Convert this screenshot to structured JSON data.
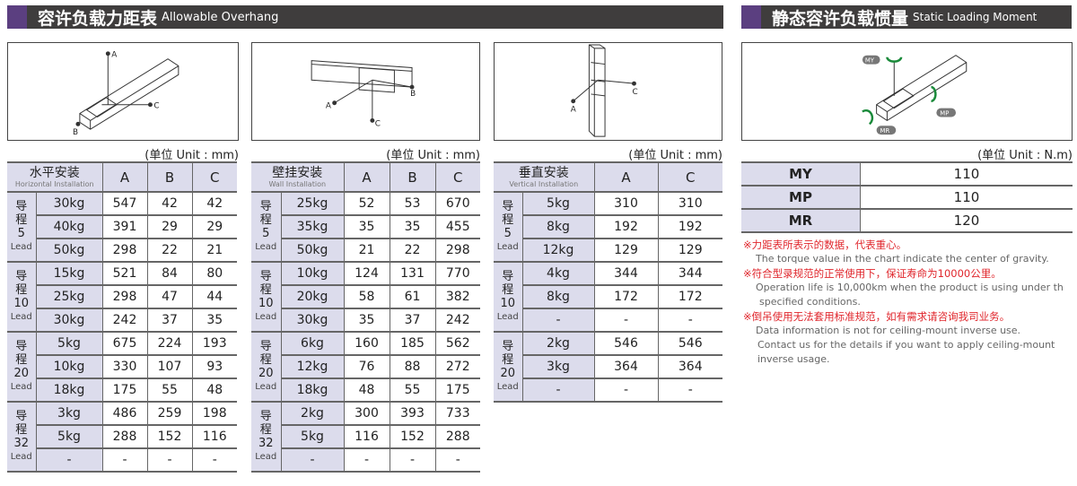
{
  "header_left": {
    "zh": "容许负载力距表",
    "en": "Allowable Overhang"
  },
  "header_right": {
    "zh": "静态容许负载惯量",
    "en": "Static Loading Moment"
  },
  "unit_mm": "(单位 Unit : mm)",
  "unit_nm": "(单位 Unit : N.m)",
  "diagram_labels": {
    "a": "A",
    "b": "B",
    "c": "C",
    "my": "MY",
    "mp": "MP",
    "mr": "MR"
  },
  "lead_word": "Lead",
  "lead_zh": "导程",
  "colors": {
    "header_bg": "#3f3d3d",
    "accent": "#5b3f80",
    "cell_bg": "#dcdcec",
    "note_red": "#e0262c",
    "arrow_green": "#1a8a3a"
  },
  "horizontal": {
    "title_zh": "水平安装",
    "title_en": "Horizontal Installation",
    "cols": [
      "A",
      "B",
      "C"
    ],
    "groups": [
      {
        "lead": "5",
        "rows": [
          [
            "30kg",
            "547",
            "42",
            "42"
          ],
          [
            "40kg",
            "391",
            "29",
            "29"
          ],
          [
            "50kg",
            "298",
            "22",
            "21"
          ]
        ]
      },
      {
        "lead": "10",
        "rows": [
          [
            "15kg",
            "521",
            "84",
            "80"
          ],
          [
            "25kg",
            "298",
            "47",
            "44"
          ],
          [
            "30kg",
            "242",
            "37",
            "35"
          ]
        ]
      },
      {
        "lead": "20",
        "rows": [
          [
            "5kg",
            "675",
            "224",
            "193"
          ],
          [
            "10kg",
            "330",
            "107",
            "93"
          ],
          [
            "18kg",
            "175",
            "55",
            "48"
          ]
        ]
      },
      {
        "lead": "32",
        "rows": [
          [
            "3kg",
            "486",
            "259",
            "198"
          ],
          [
            "5kg",
            "288",
            "152",
            "116"
          ],
          [
            "-",
            "-",
            "-",
            "-"
          ]
        ]
      }
    ]
  },
  "wall": {
    "title_zh": "壁挂安装",
    "title_en": "Wall Installation",
    "cols": [
      "A",
      "B",
      "C"
    ],
    "groups": [
      {
        "lead": "5",
        "rows": [
          [
            "25kg",
            "52",
            "53",
            "670"
          ],
          [
            "35kg",
            "35",
            "35",
            "455"
          ],
          [
            "50kg",
            "21",
            "22",
            "298"
          ]
        ]
      },
      {
        "lead": "10",
        "rows": [
          [
            "10kg",
            "124",
            "131",
            "770"
          ],
          [
            "20kg",
            "58",
            "61",
            "382"
          ],
          [
            "30kg",
            "35",
            "37",
            "242"
          ]
        ]
      },
      {
        "lead": "20",
        "rows": [
          [
            "6kg",
            "160",
            "185",
            "562"
          ],
          [
            "12kg",
            "76",
            "88",
            "272"
          ],
          [
            "18kg",
            "48",
            "55",
            "175"
          ]
        ]
      },
      {
        "lead": "32",
        "rows": [
          [
            "2kg",
            "300",
            "393",
            "733"
          ],
          [
            "5kg",
            "116",
            "152",
            "288"
          ],
          [
            "-",
            "-",
            "-",
            "-"
          ]
        ]
      }
    ]
  },
  "vertical": {
    "title_zh": "垂直安装",
    "title_en": "Vertical Installation",
    "cols": [
      "A",
      "C"
    ],
    "groups": [
      {
        "lead": "5",
        "rows": [
          [
            "5kg",
            "310",
            "310"
          ],
          [
            "8kg",
            "192",
            "192"
          ],
          [
            "12kg",
            "129",
            "129"
          ]
        ]
      },
      {
        "lead": "10",
        "rows": [
          [
            "4kg",
            "344",
            "344"
          ],
          [
            "8kg",
            "172",
            "172"
          ],
          [
            "-",
            "-",
            "-"
          ]
        ]
      },
      {
        "lead": "20",
        "rows": [
          [
            "2kg",
            "546",
            "546"
          ],
          [
            "3kg",
            "364",
            "364"
          ],
          [
            "-",
            "-",
            "-"
          ]
        ]
      }
    ]
  },
  "moments": [
    {
      "name": "MY",
      "value": "110"
    },
    {
      "name": "MP",
      "value": "110"
    },
    {
      "name": "MR",
      "value": "120"
    }
  ],
  "notes": [
    {
      "zh": "※力距表所表示的数据，代表重心。",
      "en": [
        "The torque value in the chart indicate the center of gravity."
      ]
    },
    {
      "zh": "※符合型录规范的正常使用下，保证寿命为10000公里。",
      "en": [
        "Operation life is 10,000km when the product is using under th",
        "specified conditions."
      ]
    },
    {
      "zh": "※倒吊使用无法套用标准规范，如有需求请咨询我司业务。",
      "en": [
        "Data information is not for ceiling-mount inverse use.",
        "Contact us for the details if you want to apply ceiling-mount",
        "inverse usage."
      ]
    }
  ]
}
